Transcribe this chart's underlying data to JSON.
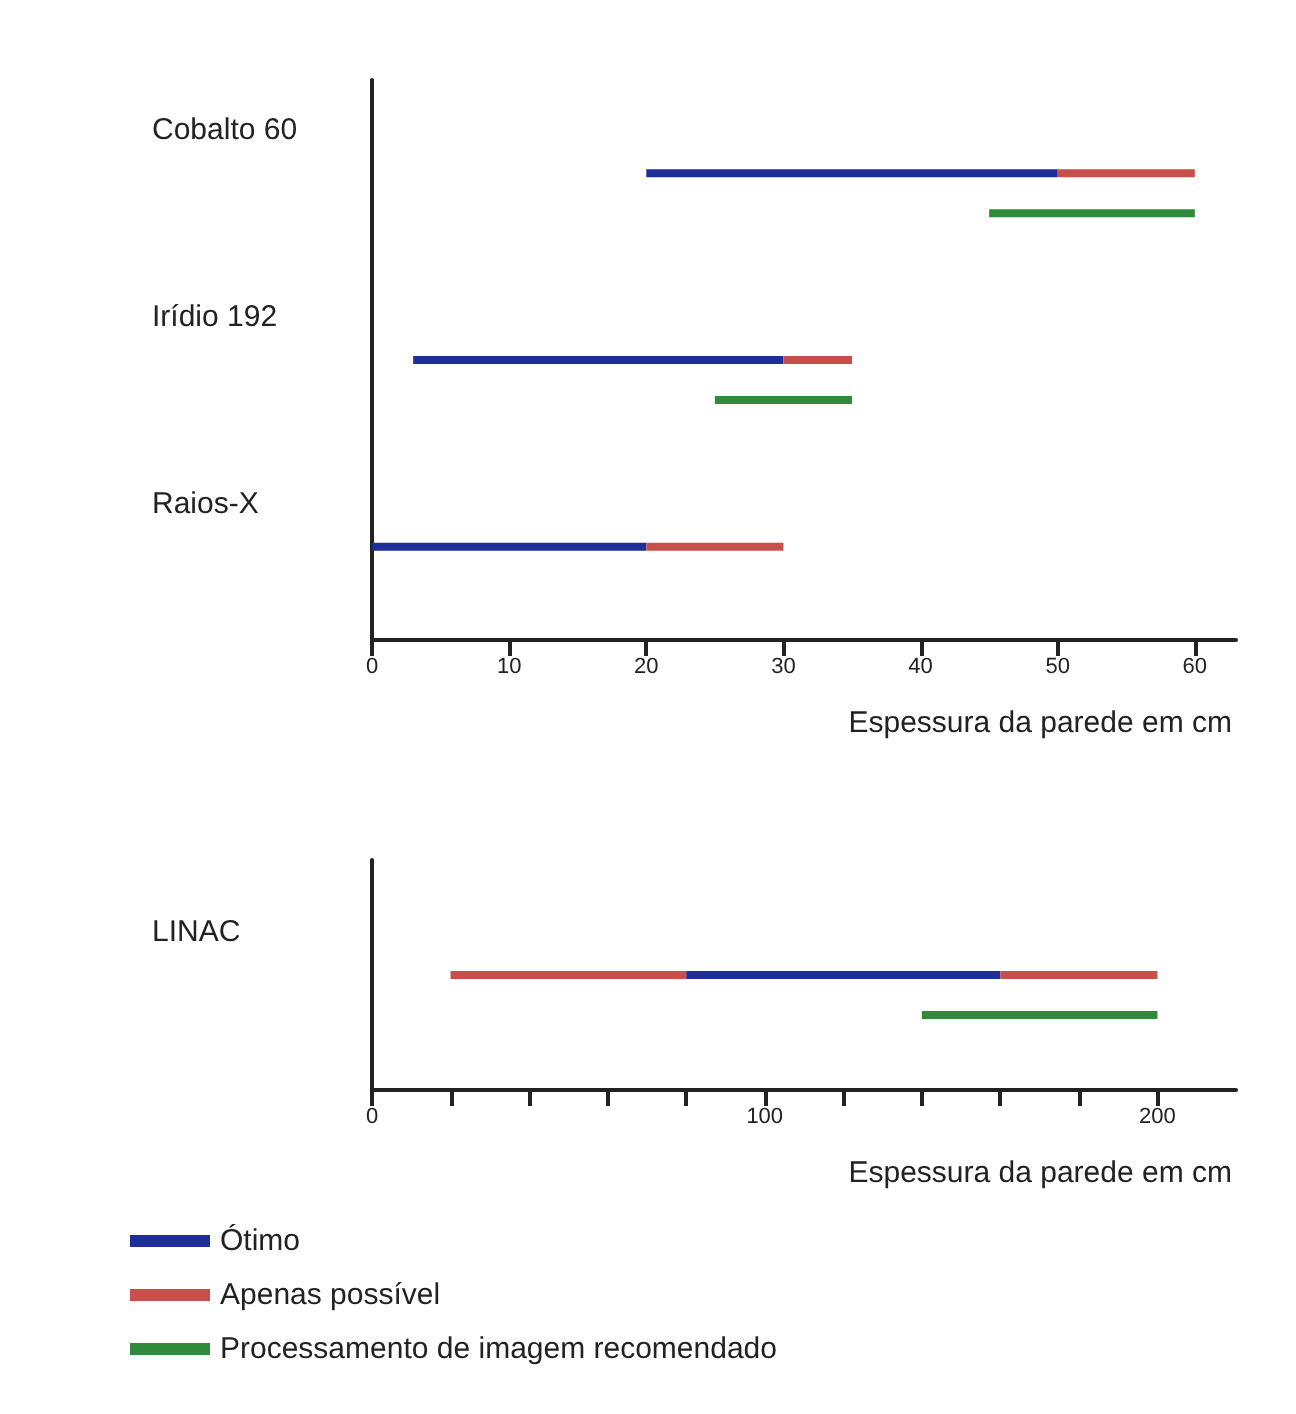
{
  "chart_data": [
    {
      "type": "bar",
      "orientation": "horizontal",
      "categories": [
        "Cobalto 60",
        "Irídio 192",
        "Raios-X"
      ],
      "xlabel": "Espessura da parede em cm",
      "xlim": [
        0,
        63
      ],
      "xticks": [
        0,
        10,
        20,
        30,
        40,
        50,
        60
      ],
      "grid": false,
      "legend": "bottom left",
      "series": [
        {
          "name": "Ótimo",
          "color": "#1f2f9a",
          "base": [
            20,
            3,
            0
          ],
          "values": [
            30,
            27,
            20
          ]
        },
        {
          "name": "Apenas possível",
          "color": "#c8504a",
          "base": [
            50,
            30,
            20
          ],
          "values": [
            10,
            5,
            10
          ]
        },
        {
          "name": "Processamento de imagem recomendado",
          "color": "#2f8a3a",
          "base": [
            45,
            25,
            null
          ],
          "values": [
            15,
            10,
            null
          ]
        }
      ]
    },
    {
      "type": "bar",
      "orientation": "horizontal",
      "categories": [
        "LINAC"
      ],
      "xlabel": "Espessura da parede em cm",
      "xlim": [
        0,
        220
      ],
      "xticks": [
        0,
        {
          "value": 20,
          "label": null
        },
        {
          "value": 40,
          "label": null
        },
        {
          "value": 60,
          "label": null
        },
        {
          "value": 80,
          "label": null
        },
        100,
        {
          "value": 120,
          "label": null
        },
        {
          "value": 140,
          "label": null
        },
        {
          "value": 160,
          "label": null
        },
        {
          "value": 180,
          "label": null
        },
        200
      ],
      "grid": false,
      "legend": "bottom left",
      "series": [
        {
          "name": "Ótimo",
          "color": "#1f2f9a",
          "base": [
            80
          ],
          "values": [
            80
          ]
        },
        {
          "name": "Apenas possível",
          "color": "#c8504a",
          "base": [
            20
          ],
          "values": [
            60
          ]
        },
        {
          "color": "#c8504a",
          "base": [
            160
          ],
          "values": [
            40
          ]
        },
        {
          "name": "Processamento de imagem recomendado",
          "color": "#2f8a3a",
          "base": [
            140
          ],
          "values": [
            60
          ]
        }
      ]
    }
  ]
}
